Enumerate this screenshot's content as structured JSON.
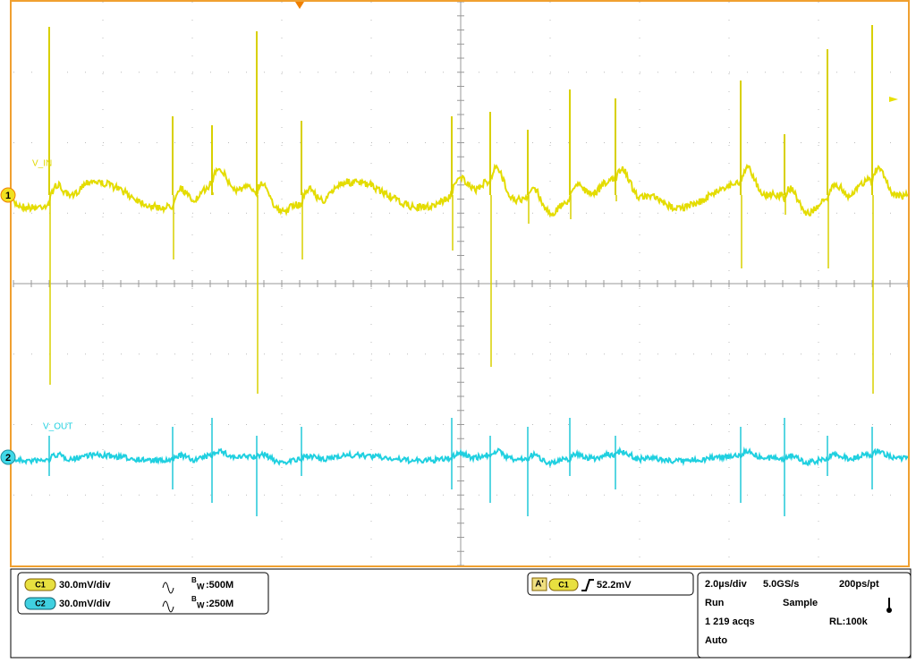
{
  "screen": {
    "channels": [
      {
        "number": "1",
        "label": "V_IN"
      },
      {
        "number": "2",
        "label": "V_OUT"
      }
    ]
  },
  "settings": {
    "channels": [
      {
        "name": "C1",
        "scale": "30.0mV/div",
        "bw_prefix": "B",
        "bw_sub": "W",
        "bw": ":500M"
      },
      {
        "name": "C2",
        "scale": "30.0mV/div",
        "bw_prefix": "B",
        "bw_sub": "W",
        "bw": ":250M"
      }
    ]
  },
  "trigger": {
    "mode": "A'",
    "source": "C1",
    "level": "52.2mV"
  },
  "acquisition": {
    "timebase": "2.0µs/div",
    "sample_rate": "5.0GS/s",
    "resolution": "200ps/pt",
    "state": "Run",
    "mode": "Sample",
    "count": "1 219 acqs",
    "record_length": "RL:100k",
    "trigger_mode": "Auto"
  }
}
